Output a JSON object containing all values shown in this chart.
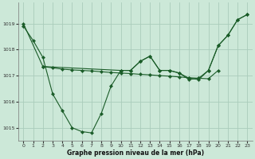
{
  "xlabel": "Graphe pression niveau de la mer (hPa)",
  "background_color": "#cce8d8",
  "plot_bg_color": "#cce8d8",
  "grid_color": "#aaccbb",
  "line_color": "#1a5c28",
  "ylim": [
    1014.5,
    1019.8
  ],
  "yticks": [
    1015,
    1016,
    1017,
    1018,
    1019
  ],
  "xticks": [
    0,
    1,
    2,
    3,
    4,
    5,
    6,
    7,
    8,
    9,
    10,
    11,
    12,
    13,
    14,
    15,
    16,
    17,
    18,
    19,
    20,
    21,
    22,
    23
  ],
  "series_u": {
    "x": [
      0,
      1,
      2,
      3,
      4,
      5,
      6,
      7,
      8,
      9,
      10,
      11,
      12,
      13,
      14,
      15,
      16,
      17,
      18,
      19,
      20,
      21,
      22,
      23
    ],
    "y": [
      1018.9,
      1018.35,
      1017.7,
      1016.3,
      1015.65,
      1015.0,
      1014.85,
      1014.8,
      1015.55,
      1016.6,
      1017.2,
      1017.2,
      1017.55,
      1017.75,
      1017.2,
      1017.2,
      1017.1,
      1016.9,
      1016.85,
      1017.2,
      1018.15,
      1018.55,
      1019.15,
      1019.35
    ]
  },
  "series_flat": {
    "x": [
      2,
      3,
      4,
      5,
      6,
      7,
      8,
      9,
      10,
      11,
      12,
      13,
      14,
      15,
      16,
      17,
      18,
      19,
      20
    ],
    "y": [
      1017.35,
      1017.3,
      1017.25,
      1017.22,
      1017.2,
      1017.18,
      1017.15,
      1017.12,
      1017.1,
      1017.08,
      1017.05,
      1017.03,
      1017.0,
      1016.98,
      1016.95,
      1016.92,
      1016.9,
      1016.88,
      1017.2
    ]
  },
  "series_diag": {
    "x": [
      0,
      2,
      10,
      11,
      12,
      13,
      14,
      15,
      16,
      17,
      18,
      19,
      20,
      21,
      22,
      23
    ],
    "y": [
      1019.0,
      1017.35,
      1017.2,
      1017.2,
      1017.55,
      1017.75,
      1017.2,
      1017.2,
      1017.1,
      1016.85,
      1016.9,
      1017.2,
      1018.15,
      1018.55,
      1019.15,
      1019.35
    ]
  }
}
